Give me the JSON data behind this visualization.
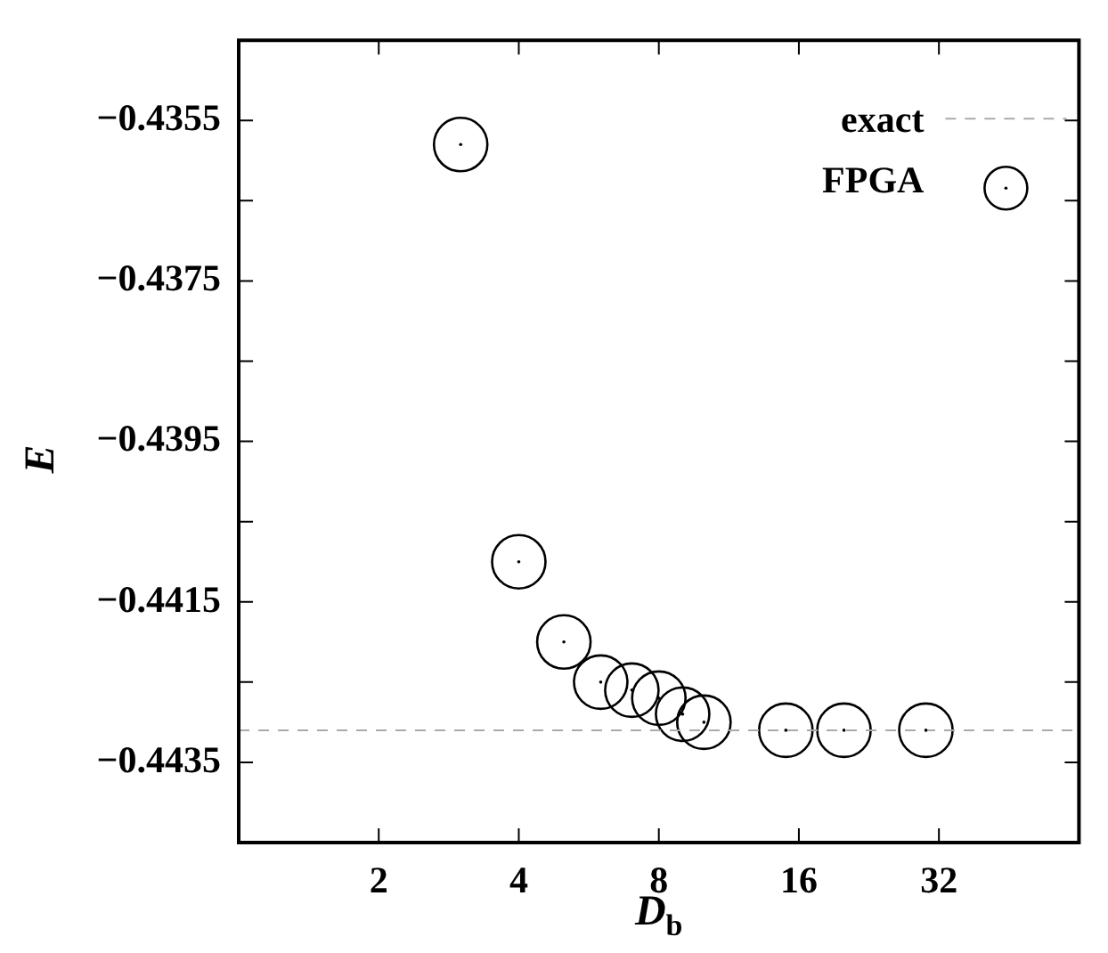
{
  "chart_data": {
    "type": "scatter",
    "xlabel": "D$_{b}$",
    "ylabel": "E",
    "log": "x",
    "xlim": [
      1,
      64
    ],
    "xticks": [
      2,
      4,
      8,
      16,
      32
    ],
    "ylim": [
      -0.4445,
      -0.4345
    ],
    "yticks": [
      {
        "value": -0.4345,
        "label": null
      },
      -0.4355,
      {
        "value": -0.4365,
        "label": null
      },
      -0.4375,
      {
        "value": -0.4385,
        "label": null
      },
      -0.4395,
      {
        "value": -0.4405,
        "label": null
      },
      -0.4415,
      {
        "value": -0.4425,
        "label": null
      },
      -0.4435
    ],
    "series": [
      {
        "name": "FPGA",
        "color": "#000000",
        "x": [
          3,
          4,
          5,
          6,
          7,
          8,
          9,
          10,
          15,
          20,
          30
        ],
        "values": [
          -0.4358,
          -0.441,
          -0.442,
          -0.4425,
          -0.4426,
          -0.4427,
          -0.4429,
          -0.443,
          -0.4431,
          -0.4431,
          -0.4431
        ]
      }
    ],
    "ref_lines": [
      {
        "axis": "y",
        "value": -0.4431,
        "label": "exact",
        "color": "#aaaaaa",
        "line_style": "dashed"
      }
    ],
    "marker": "circle",
    "grid": false,
    "legend": "top right"
  }
}
